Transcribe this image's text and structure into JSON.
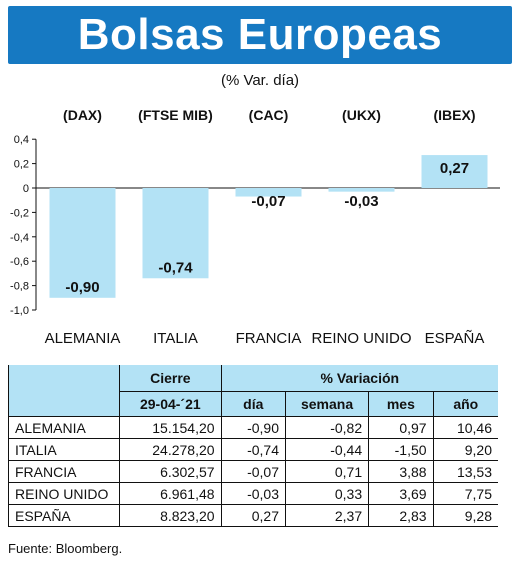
{
  "header": {
    "title": "Bolsas Europeas",
    "subtitle": "(% Var. día)"
  },
  "chart_data": {
    "type": "bar",
    "categories": [
      "ALEMANIA",
      "ITALIA",
      "FRANCIA",
      "REINO UNIDO",
      "ESPAÑA"
    ],
    "indices": [
      "(DAX)",
      "(FTSE MIB)",
      "(CAC)",
      "(UKX)",
      "(IBEX)"
    ],
    "values": [
      -0.9,
      -0.74,
      -0.07,
      -0.03,
      0.27
    ],
    "value_labels": [
      "-0,90",
      "-0,74",
      "-0,07",
      "-0,03",
      "0,27"
    ],
    "yticks": [
      "0,4",
      "0,2",
      "0",
      "-0,2",
      "-0,4",
      "-0,6",
      "-0,8",
      "-1,0"
    ],
    "ytick_values": [
      0.4,
      0.2,
      0,
      -0.2,
      -0.4,
      -0.6,
      -0.8,
      -1.0
    ],
    "ylim": [
      -1.0,
      0.4
    ],
    "bar_color": "#b3e2f5",
    "grid": false
  },
  "table": {
    "group_headers": {
      "cierre": "Cierre",
      "variacion": "% Variación"
    },
    "columns": [
      "29-04-´21",
      "día",
      "semana",
      "mes",
      "año"
    ],
    "rows": [
      {
        "name": "ALEMANIA",
        "cierre": "15.154,20",
        "dia": "-0,90",
        "semana": "-0,82",
        "mes": "0,97",
        "ano": "10,46"
      },
      {
        "name": "ITALIA",
        "cierre": "24.278,20",
        "dia": "-0,74",
        "semana": "-0,44",
        "mes": "-1,50",
        "ano": "9,20"
      },
      {
        "name": "FRANCIA",
        "cierre": "6.302,57",
        "dia": "-0,07",
        "semana": "0,71",
        "mes": "3,88",
        "ano": "13,53"
      },
      {
        "name": "REINO UNIDO",
        "cierre": "6.961,48",
        "dia": "-0,03",
        "semana": "0,33",
        "mes": "3,69",
        "ano": "7,75"
      },
      {
        "name": "ESPAÑA",
        "cierre": "8.823,20",
        "dia": "0,27",
        "semana": "2,37",
        "mes": "2,83",
        "ano": "9,28"
      }
    ]
  },
  "footer": {
    "source": "Fuente: Bloomberg."
  },
  "colors": {
    "banner": "#1679c2",
    "accent": "#b3e2f5"
  }
}
